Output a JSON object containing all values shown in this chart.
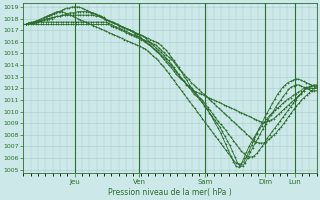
{
  "title": "Pression niveau de la mer( hPa )",
  "bg_color": "#cce8e8",
  "line_color": "#2d6e2d",
  "grid_color": "#aacccc",
  "ymin": 1005,
  "ymax": 1019,
  "yticks": [
    1005,
    1006,
    1007,
    1008,
    1009,
    1010,
    1011,
    1012,
    1013,
    1014,
    1015,
    1016,
    1017,
    1018,
    1019
  ],
  "day_labels": [
    "Jeu",
    "Ven",
    "Sam",
    "Dim",
    "Lun"
  ],
  "day_positions": [
    0.175,
    0.395,
    0.62,
    0.825,
    0.925
  ],
  "series": [
    [
      1017.5,
      1017.5,
      1017.6,
      1017.7,
      1017.7,
      1017.8,
      1017.8,
      1017.8,
      1017.9,
      1017.9,
      1018.0,
      1018.0,
      1018.1,
      1018.2,
      1018.2,
      1018.3,
      1018.3,
      1018.4,
      1018.5,
      1018.5,
      1018.5,
      1018.6,
      1018.6,
      1018.6,
      1018.6,
      1018.6,
      1018.5,
      1018.5,
      1018.4,
      1018.3,
      1018.2,
      1018.1,
      1017.9,
      1017.8,
      1017.7,
      1017.6,
      1017.5,
      1017.4,
      1017.3,
      1017.2,
      1017.1,
      1017.0,
      1016.9,
      1016.8,
      1016.7,
      1016.6,
      1016.5,
      1016.4,
      1016.3,
      1016.2,
      1016.1,
      1016.0,
      1015.9,
      1015.7,
      1015.5,
      1015.3,
      1015.0,
      1014.7,
      1014.4,
      1014.1,
      1013.8,
      1013.4,
      1013.0,
      1012.7,
      1012.3,
      1012.0,
      1011.7,
      1011.4,
      1011.1,
      1010.8,
      1010.5,
      1010.2,
      1009.8,
      1009.4,
      1009.0,
      1008.6,
      1008.2,
      1007.7,
      1007.2,
      1006.7,
      1006.2,
      1005.7,
      1005.3,
      1005.2,
      1005.5,
      1006.0,
      1006.5,
      1007.0,
      1007.4,
      1007.8,
      1008.2,
      1008.5,
      1008.8,
      1009.1,
      1009.4,
      1009.7,
      1009.9,
      1010.1,
      1010.3,
      1010.5,
      1010.7,
      1010.9,
      1011.1,
      1011.2,
      1011.4,
      1011.5,
      1011.7,
      1011.8,
      1012.0,
      1012.1,
      1012.1,
      1012.2,
      1012.2,
      1012.2
    ],
    [
      1017.5,
      1017.5,
      1017.6,
      1017.6,
      1017.7,
      1017.7,
      1017.8,
      1017.9,
      1018.0,
      1018.1,
      1018.2,
      1018.3,
      1018.4,
      1018.5,
      1018.6,
      1018.7,
      1018.8,
      1018.9,
      1018.9,
      1019.0,
      1019.0,
      1019.0,
      1019.0,
      1018.9,
      1018.8,
      1018.7,
      1018.6,
      1018.5,
      1018.4,
      1018.3,
      1018.2,
      1018.1,
      1018.0,
      1017.9,
      1017.8,
      1017.7,
      1017.6,
      1017.5,
      1017.4,
      1017.3,
      1017.2,
      1017.1,
      1017.0,
      1016.9,
      1016.8,
      1016.7,
      1016.6,
      1016.5,
      1016.3,
      1016.1,
      1015.9,
      1015.7,
      1015.5,
      1015.3,
      1015.1,
      1014.9,
      1014.6,
      1014.4,
      1014.1,
      1013.8,
      1013.5,
      1013.2,
      1012.9,
      1012.6,
      1012.3,
      1012.1,
      1011.8,
      1011.5,
      1011.3,
      1011.1,
      1010.8,
      1010.5,
      1010.2,
      1009.9,
      1009.6,
      1009.3,
      1009.0,
      1008.7,
      1008.3,
      1007.9,
      1007.5,
      1007.1,
      1006.6,
      1006.1,
      1005.6,
      1005.3,
      1005.3,
      1005.6,
      1006.0,
      1006.5,
      1006.9,
      1007.3,
      1007.7,
      1008.1,
      1008.5,
      1008.9,
      1009.3,
      1009.7,
      1010.0,
      1010.4,
      1010.7,
      1011.0,
      1011.3,
      1011.6,
      1011.9,
      1012.1,
      1012.2,
      1012.3,
      1012.3,
      1012.2,
      1012.1,
      1012.0,
      1011.9,
      1011.8,
      1011.8,
      1011.8
    ],
    [
      1017.5,
      1017.5,
      1017.6,
      1017.6,
      1017.7,
      1017.8,
      1017.9,
      1018.0,
      1018.1,
      1018.2,
      1018.3,
      1018.4,
      1018.5,
      1018.6,
      1018.6,
      1018.6,
      1018.5,
      1018.4,
      1018.3,
      1018.2,
      1018.1,
      1018.0,
      1017.9,
      1017.8,
      1017.7,
      1017.6,
      1017.5,
      1017.4,
      1017.3,
      1017.2,
      1017.1,
      1017.0,
      1016.9,
      1016.8,
      1016.7,
      1016.6,
      1016.5,
      1016.4,
      1016.3,
      1016.2,
      1016.1,
      1016.0,
      1015.9,
      1015.8,
      1015.7,
      1015.6,
      1015.5,
      1015.4,
      1015.2,
      1015.0,
      1014.8,
      1014.6,
      1014.4,
      1014.1,
      1013.9,
      1013.6,
      1013.3,
      1013.0,
      1012.7,
      1012.4,
      1012.1,
      1011.8,
      1011.5,
      1011.2,
      1010.9,
      1010.6,
      1010.3,
      1010.0,
      1009.7,
      1009.4,
      1009.1,
      1008.8,
      1008.5,
      1008.2,
      1007.9,
      1007.6,
      1007.3,
      1007.0,
      1006.7,
      1006.4,
      1006.1,
      1005.8,
      1005.6,
      1005.5,
      1005.5,
      1005.7,
      1006.1,
      1006.6,
      1007.1,
      1007.6,
      1008.1,
      1008.6,
      1009.0,
      1009.5,
      1009.9,
      1010.3,
      1010.7,
      1011.1,
      1011.5,
      1011.8,
      1012.1,
      1012.3,
      1012.5,
      1012.6,
      1012.7,
      1012.8,
      1012.8,
      1012.7,
      1012.6,
      1012.5,
      1012.4,
      1012.3,
      1012.2,
      1012.2
    ],
    [
      1017.5,
      1017.5,
      1017.6,
      1017.6,
      1017.7,
      1017.7,
      1017.8,
      1017.8,
      1017.9,
      1018.0,
      1018.0,
      1018.1,
      1018.1,
      1018.2,
      1018.2,
      1018.3,
      1018.3,
      1018.3,
      1018.3,
      1018.3,
      1018.3,
      1018.3,
      1018.3,
      1018.3,
      1018.3,
      1018.3,
      1018.3,
      1018.3,
      1018.2,
      1018.2,
      1018.1,
      1018.0,
      1017.9,
      1017.8,
      1017.7,
      1017.6,
      1017.5,
      1017.4,
      1017.3,
      1017.2,
      1017.1,
      1017.0,
      1016.9,
      1016.7,
      1016.5,
      1016.4,
      1016.2,
      1016.0,
      1015.8,
      1015.7,
      1015.5,
      1015.3,
      1015.1,
      1014.9,
      1014.7,
      1014.5,
      1014.2,
      1014.0,
      1013.7,
      1013.4,
      1013.1,
      1012.8,
      1012.6,
      1012.3,
      1012.1,
      1011.9,
      1011.6,
      1011.4,
      1011.2,
      1011.0,
      1010.7,
      1010.4,
      1010.1,
      1009.8,
      1009.5,
      1009.2,
      1008.9,
      1008.7,
      1008.4,
      1008.1,
      1007.8,
      1007.5,
      1007.2,
      1006.9,
      1006.6,
      1006.4,
      1006.2,
      1006.1,
      1006.1,
      1006.2,
      1006.4,
      1006.7,
      1007.0,
      1007.3,
      1007.7,
      1008.0,
      1008.3,
      1008.6,
      1008.9,
      1009.2,
      1009.5,
      1009.8,
      1010.1,
      1010.4,
      1010.7,
      1011.0,
      1011.3,
      1011.5,
      1011.8,
      1012.0,
      1012.1,
      1012.2,
      1012.3,
      1012.3
    ],
    [
      1017.5,
      1017.5,
      1017.5,
      1017.6,
      1017.6,
      1017.6,
      1017.7,
      1017.7,
      1017.7,
      1017.7,
      1017.7,
      1017.7,
      1017.7,
      1017.7,
      1017.7,
      1017.7,
      1017.7,
      1017.7,
      1017.7,
      1017.7,
      1017.7,
      1017.7,
      1017.7,
      1017.7,
      1017.7,
      1017.7,
      1017.7,
      1017.7,
      1017.7,
      1017.7,
      1017.7,
      1017.7,
      1017.7,
      1017.7,
      1017.6,
      1017.5,
      1017.4,
      1017.3,
      1017.2,
      1017.1,
      1017.0,
      1016.9,
      1016.8,
      1016.7,
      1016.6,
      1016.5,
      1016.4,
      1016.3,
      1016.2,
      1016.1,
      1016.0,
      1015.9,
      1015.8,
      1015.7,
      1015.5,
      1015.3,
      1015.1,
      1014.9,
      1014.7,
      1014.5,
      1014.3,
      1014.0,
      1013.7,
      1013.5,
      1013.2,
      1013.0,
      1012.8,
      1012.5,
      1012.3,
      1012.1,
      1011.9,
      1011.7,
      1011.5,
      1011.3,
      1011.1,
      1010.9,
      1010.7,
      1010.5,
      1010.3,
      1010.1,
      1009.9,
      1009.7,
      1009.5,
      1009.3,
      1009.1,
      1008.9,
      1008.7,
      1008.5,
      1008.3,
      1008.1,
      1007.9,
      1007.7,
      1007.5,
      1007.4,
      1007.3,
      1007.3,
      1007.3,
      1007.4,
      1007.6,
      1007.8,
      1008.0,
      1008.2,
      1008.5,
      1008.7,
      1009.0,
      1009.3,
      1009.6,
      1009.9,
      1010.2,
      1010.5,
      1010.7,
      1011.0,
      1011.2,
      1011.4,
      1011.6,
      1011.8,
      1012.0,
      1012.1
    ],
    [
      1017.5,
      1017.5,
      1017.5,
      1017.5,
      1017.5,
      1017.5,
      1017.5,
      1017.5,
      1017.5,
      1017.5,
      1017.5,
      1017.5,
      1017.5,
      1017.5,
      1017.5,
      1017.5,
      1017.5,
      1017.5,
      1017.5,
      1017.5,
      1017.5,
      1017.5,
      1017.5,
      1017.5,
      1017.5,
      1017.5,
      1017.5,
      1017.5,
      1017.5,
      1017.5,
      1017.5,
      1017.5,
      1017.5,
      1017.5,
      1017.5,
      1017.4,
      1017.3,
      1017.2,
      1017.1,
      1017.0,
      1016.9,
      1016.8,
      1016.7,
      1016.6,
      1016.5,
      1016.4,
      1016.3,
      1016.2,
      1016.1,
      1016.0,
      1015.8,
      1015.6,
      1015.4,
      1015.2,
      1015.0,
      1014.8,
      1014.5,
      1014.3,
      1014.0,
      1013.8,
      1013.5,
      1013.2,
      1013.0,
      1012.8,
      1012.6,
      1012.4,
      1012.2,
      1012.0,
      1011.8,
      1011.7,
      1011.6,
      1011.5,
      1011.4,
      1011.3,
      1011.2,
      1011.1,
      1011.0,
      1010.9,
      1010.8,
      1010.7,
      1010.6,
      1010.5,
      1010.4,
      1010.3,
      1010.2,
      1010.1,
      1010.0,
      1009.9,
      1009.8,
      1009.7,
      1009.6,
      1009.5,
      1009.4,
      1009.3,
      1009.2,
      1009.1,
      1009.1,
      1009.1,
      1009.2,
      1009.3,
      1009.4,
      1009.6,
      1009.8,
      1010.0,
      1010.2,
      1010.4,
      1010.6,
      1010.8,
      1011.0,
      1011.2,
      1011.4,
      1011.6,
      1011.8,
      1012.0,
      1012.0,
      1012.0,
      1012.0,
      1012.0
    ]
  ]
}
